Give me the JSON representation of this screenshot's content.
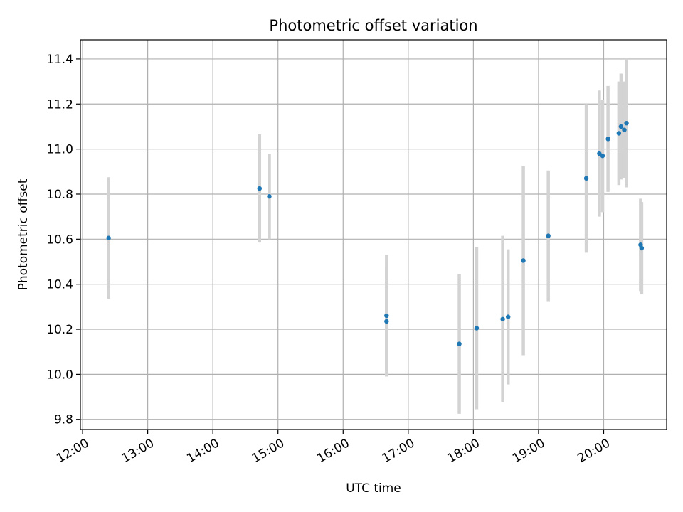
{
  "chart_data": {
    "type": "scatter",
    "title": "Photometric offset variation",
    "xlabel": "UTC time",
    "ylabel": "Photometric offset",
    "grid": true,
    "legend": "none",
    "colors": {
      "points": "#1f77b4",
      "errorbars": "#d3d3d3",
      "grid": "#b0b0b0"
    },
    "x_tick_labels": [
      "12:00",
      "13:00",
      "14:00",
      "15:00",
      "16:00",
      "17:00",
      "18:00",
      "19:00",
      "20:00"
    ],
    "y_ticks": [
      9.8,
      10.0,
      10.2,
      10.4,
      10.6,
      10.8,
      11.0,
      11.2,
      11.4
    ],
    "y_tick_labels": [
      "9.8",
      "10.0",
      "10.2",
      "10.4",
      "10.6",
      "10.8",
      "11.0",
      "11.2",
      "11.4"
    ],
    "xlim": [
      "11:58",
      "20:58"
    ],
    "ylim": [
      9.755,
      11.485
    ],
    "points": [
      {
        "x": "12:24",
        "y": 10.605,
        "yerr": 0.27
      },
      {
        "x": "14:43",
        "y": 10.825,
        "yerr": 0.24
      },
      {
        "x": "14:52",
        "y": 10.79,
        "yerr": 0.19
      },
      {
        "x": "16:40",
        "y": 10.26,
        "yerr": 0.27
      },
      {
        "x": "16:40",
        "y": 10.235,
        "yerr": 0.24
      },
      {
        "x": "17:47",
        "y": 10.135,
        "yerr": 0.31
      },
      {
        "x": "18:03",
        "y": 10.205,
        "yerr": 0.36
      },
      {
        "x": "18:27",
        "y": 10.245,
        "yerr": 0.37
      },
      {
        "x": "18:32",
        "y": 10.255,
        "yerr": 0.3
      },
      {
        "x": "18:46",
        "y": 10.505,
        "yerr": 0.42
      },
      {
        "x": "19:09",
        "y": 10.615,
        "yerr": 0.29
      },
      {
        "x": "19:44",
        "y": 10.87,
        "yerr": 0.33
      },
      {
        "x": "19:56",
        "y": 10.98,
        "yerr": 0.28
      },
      {
        "x": "19:59",
        "y": 10.97,
        "yerr": 0.25
      },
      {
        "x": "20:04",
        "y": 11.045,
        "yerr": 0.235
      },
      {
        "x": "20:14",
        "y": 11.07,
        "yerr": 0.23
      },
      {
        "x": "20:16",
        "y": 11.1,
        "yerr": 0.235
      },
      {
        "x": "20:19",
        "y": 11.085,
        "yerr": 0.215
      },
      {
        "x": "20:21",
        "y": 11.115,
        "yerr": 0.285
      },
      {
        "x": "20:34",
        "y": 10.575,
        "yerr": 0.205
      },
      {
        "x": "20:35",
        "y": 10.56,
        "yerr": 0.205
      }
    ]
  }
}
